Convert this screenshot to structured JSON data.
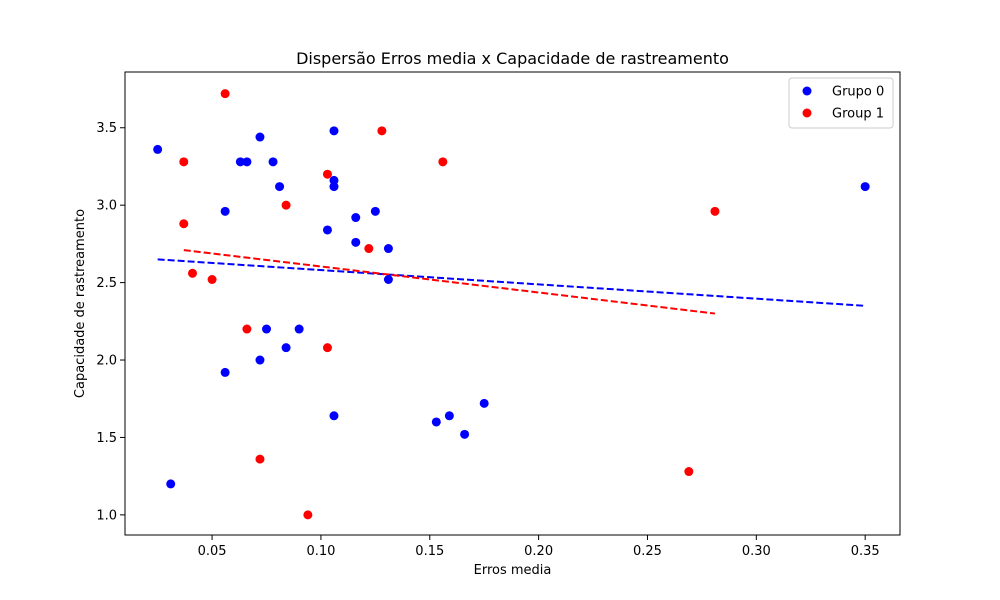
{
  "chart_data": {
    "type": "scatter",
    "title": "Dispersão Erros media x Capacidade de rastreamento",
    "xlabel": "Erros media",
    "ylabel": "Capacidade de rastreamento",
    "xlim": [
      0.01,
      0.366
    ],
    "ylim": [
      0.87,
      3.86
    ],
    "xticks": [
      0.05,
      0.1,
      0.15,
      0.2,
      0.25,
      0.3,
      0.35
    ],
    "xtick_labels": [
      "0.05",
      "0.10",
      "0.15",
      "0.20",
      "0.25",
      "0.30",
      "0.35"
    ],
    "yticks": [
      1.0,
      1.5,
      2.0,
      2.5,
      3.0,
      3.5
    ],
    "ytick_labels": [
      "1.0",
      "1.5",
      "2.0",
      "2.5",
      "3.0",
      "3.5"
    ],
    "grid": false,
    "legend_position": "top-right",
    "series": [
      {
        "name": "Grupo 0",
        "color": "#0000ff",
        "points": [
          [
            0.025,
            3.36
          ],
          [
            0.031,
            1.2
          ],
          [
            0.056,
            2.96
          ],
          [
            0.056,
            1.92
          ],
          [
            0.063,
            3.28
          ],
          [
            0.066,
            3.28
          ],
          [
            0.072,
            3.44
          ],
          [
            0.072,
            2.0
          ],
          [
            0.075,
            2.2
          ],
          [
            0.078,
            3.28
          ],
          [
            0.081,
            3.12
          ],
          [
            0.084,
            2.08
          ],
          [
            0.09,
            2.2
          ],
          [
            0.103,
            2.84
          ],
          [
            0.106,
            3.48
          ],
          [
            0.106,
            3.16
          ],
          [
            0.106,
            3.12
          ],
          [
            0.106,
            1.64
          ],
          [
            0.116,
            2.92
          ],
          [
            0.116,
            2.76
          ],
          [
            0.125,
            2.96
          ],
          [
            0.131,
            2.72
          ],
          [
            0.131,
            2.52
          ],
          [
            0.153,
            1.6
          ],
          [
            0.159,
            1.64
          ],
          [
            0.166,
            1.52
          ],
          [
            0.175,
            1.72
          ],
          [
            0.35,
            3.12
          ]
        ],
        "trend": {
          "x": [
            0.025,
            0.35
          ],
          "y": [
            2.65,
            2.35
          ],
          "style": "dashed"
        }
      },
      {
        "name": "Group 1",
        "color": "#ff0000",
        "points": [
          [
            0.037,
            3.28
          ],
          [
            0.037,
            2.88
          ],
          [
            0.041,
            2.56
          ],
          [
            0.05,
            2.52
          ],
          [
            0.056,
            3.72
          ],
          [
            0.066,
            2.2
          ],
          [
            0.072,
            1.36
          ],
          [
            0.084,
            3.0
          ],
          [
            0.094,
            1.0
          ],
          [
            0.103,
            3.2
          ],
          [
            0.103,
            2.08
          ],
          [
            0.122,
            2.72
          ],
          [
            0.128,
            3.48
          ],
          [
            0.156,
            3.28
          ],
          [
            0.269,
            1.28
          ],
          [
            0.281,
            2.96
          ]
        ],
        "trend": {
          "x": [
            0.037,
            0.281
          ],
          "y": [
            2.71,
            2.3
          ],
          "style": "dashed"
        }
      }
    ]
  }
}
